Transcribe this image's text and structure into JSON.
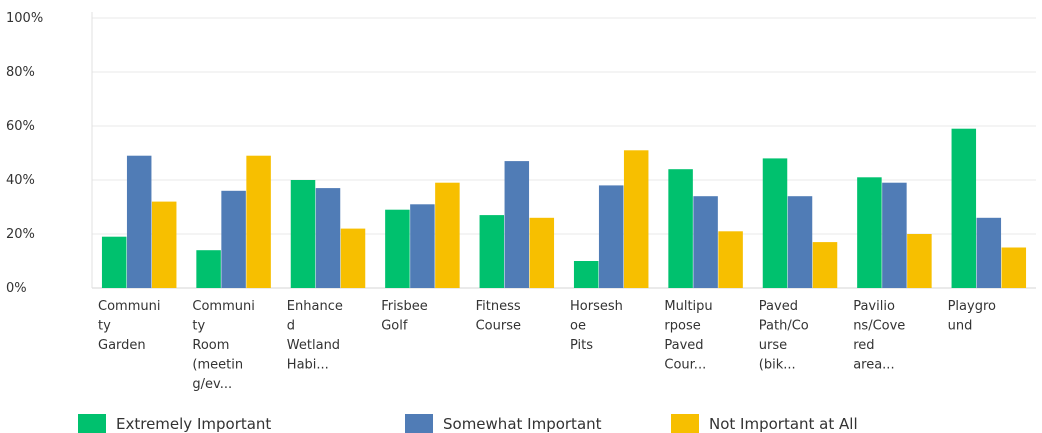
{
  "chart_data": {
    "type": "bar",
    "categories": [
      [
        "Communi",
        "ty",
        "Garden"
      ],
      [
        "Communi",
        "ty",
        "Room",
        "(meetin",
        "g/ev..."
      ],
      [
        "Enhance",
        "d",
        "Wetland",
        "Habi..."
      ],
      [
        "Frisbee",
        "Golf"
      ],
      [
        "Fitness",
        "Course"
      ],
      [
        "Horsesh",
        "oe",
        "Pits"
      ],
      [
        "Multipu",
        "rpose",
        "Paved",
        "Cour..."
      ],
      [
        "Paved",
        "Path/Co",
        "urse",
        "(bik..."
      ],
      [
        "Pavilio",
        "ns/Cove",
        "red",
        "area..."
      ],
      [
        "Playgro",
        "und"
      ]
    ],
    "series": [
      {
        "name": "Extremely Important",
        "color": "#00c16e",
        "values": [
          19,
          14,
          40,
          29,
          27,
          10,
          44,
          48,
          41,
          59
        ]
      },
      {
        "name": "Somewhat Important",
        "color": "#507cb6",
        "values": [
          49,
          36,
          37,
          31,
          47,
          38,
          34,
          34,
          39,
          26
        ]
      },
      {
        "name": "Not Important at All",
        "color": "#f7bf00",
        "values": [
          32,
          49,
          22,
          39,
          26,
          51,
          21,
          17,
          20,
          15
        ]
      }
    ],
    "yticks": [
      "0%",
      "20%",
      "40%",
      "60%",
      "80%",
      "100%"
    ],
    "ylim": [
      0,
      100
    ],
    "grid": true,
    "legend": "bottom"
  }
}
